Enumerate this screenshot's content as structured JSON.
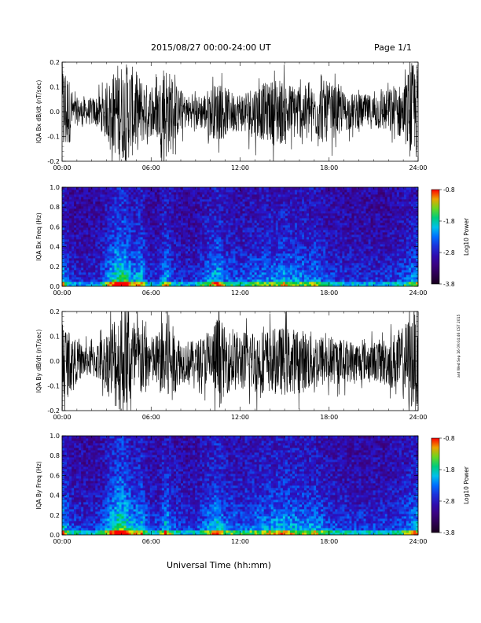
{
  "header": {
    "date_range": "2015/08/27  00:00-24:00 UT",
    "page": "Page 1/1"
  },
  "footer": {
    "xlabel": "Universal Time (hh:mm)"
  },
  "stamp": "ant Wed Sep 16 09:04:46 CST 2015",
  "chart_data": [
    {
      "type": "line",
      "ylabel": "IQA Bx dB/dt (nT/sec)",
      "xlim_hours": [
        0,
        24
      ],
      "ylim": [
        -0.2,
        0.2
      ],
      "xticks": [
        "00:00",
        "06:00",
        "12:00",
        "18:00",
        "24:00"
      ],
      "yticks": [
        "-0.2",
        "-0.1",
        "0.0",
        "0.1",
        "0.2"
      ],
      "ytick_values": [
        -0.2,
        -0.1,
        0.0,
        0.1,
        0.2
      ],
      "color": "#000000",
      "envelope": {
        "x_hours": [
          0,
          0.2,
          0.8,
          1.5,
          2.2,
          2.8,
          3.4,
          3.7,
          4.0,
          4.4,
          4.8,
          5.2,
          5.6,
          6.0,
          6.5,
          7.0,
          7.3,
          7.8,
          8.3,
          9.0,
          9.6,
          10.0,
          10.5,
          11.0,
          11.5,
          12.0,
          13.0,
          14.0,
          14.5,
          15.0,
          16.0,
          17.0,
          17.5,
          18.0,
          19.0,
          20.0,
          21.0,
          22.0,
          22.5,
          23.0,
          23.5,
          24.0
        ],
        "amplitude": [
          0.2,
          0.2,
          0.06,
          0.05,
          0.06,
          0.08,
          0.15,
          0.2,
          0.2,
          0.2,
          0.18,
          0.15,
          0.12,
          0.1,
          0.12,
          0.2,
          0.16,
          0.1,
          0.07,
          0.06,
          0.08,
          0.1,
          0.12,
          0.1,
          0.08,
          0.08,
          0.11,
          0.12,
          0.15,
          0.12,
          0.11,
          0.1,
          0.13,
          0.12,
          0.08,
          0.07,
          0.07,
          0.09,
          0.12,
          0.1,
          0.2,
          0.2
        ]
      }
    },
    {
      "type": "heatmap",
      "ylabel": "IQA Bx Freq (Hz)",
      "xlim_hours": [
        0,
        24
      ],
      "ylim": [
        0.0,
        1.0
      ],
      "xticks": [
        "00:00",
        "06:00",
        "12:00",
        "18:00",
        "24:00"
      ],
      "yticks": [
        "0.0",
        "0.2",
        "0.4",
        "0.6",
        "0.8",
        "1.0"
      ],
      "ytick_values": [
        0.0,
        0.2,
        0.4,
        0.6,
        0.8,
        1.0
      ],
      "colorbar": {
        "label": "Log10 Power",
        "range": [
          -3.8,
          -0.8
        ],
        "ticks": [
          "-0.8",
          "-1.8",
          "-2.8",
          "-3.8"
        ],
        "tick_values": [
          -0.8,
          -1.8,
          -2.8,
          -3.8
        ]
      },
      "activity": {
        "x_hours": [
          0,
          0.5,
          1.5,
          2.5,
          3.2,
          3.6,
          4.0,
          4.4,
          4.8,
          5.3,
          5.8,
          6.5,
          7.0,
          7.4,
          8.0,
          9.0,
          10.0,
          10.5,
          11.0,
          12.0,
          13.5,
          14.5,
          15.0,
          15.5,
          16.5,
          17.0,
          18.0,
          20.0,
          22.0,
          23.0,
          24.0
        ],
        "level": [
          0.7,
          0.3,
          0.25,
          0.3,
          0.6,
          0.8,
          0.9,
          0.75,
          0.55,
          0.7,
          0.35,
          0.3,
          0.65,
          0.4,
          0.3,
          0.3,
          0.55,
          0.7,
          0.45,
          0.4,
          0.5,
          0.55,
          0.6,
          0.55,
          0.5,
          0.55,
          0.35,
          0.3,
          0.3,
          0.4,
          0.6
        ]
      }
    },
    {
      "type": "line",
      "ylabel": "IQA By dB/dt (nT/sec)",
      "xlim_hours": [
        0,
        24
      ],
      "ylim": [
        -0.2,
        0.2
      ],
      "xticks": [
        "00:00",
        "06:00",
        "12:00",
        "18:00",
        "24:00"
      ],
      "yticks": [
        "-0.2",
        "-0.1",
        "0.0",
        "0.1",
        "0.2"
      ],
      "ytick_values": [
        -0.2,
        -0.1,
        0.0,
        0.1,
        0.2
      ],
      "color": "#000000",
      "envelope": {
        "x_hours": [
          0,
          0.4,
          1.0,
          1.8,
          2.4,
          3.0,
          3.5,
          4.0,
          4.5,
          5.0,
          5.5,
          6.0,
          6.5,
          7.0,
          7.4,
          8.0,
          9.0,
          10.0,
          10.5,
          11.0,
          12.0,
          13.0,
          14.0,
          15.0,
          16.0,
          17.0,
          18.0,
          19.0,
          20.0,
          21.0,
          22.0,
          22.5,
          23.0,
          23.5,
          24.0
        ],
        "amplitude": [
          0.2,
          0.13,
          0.08,
          0.06,
          0.08,
          0.12,
          0.2,
          0.2,
          0.2,
          0.17,
          0.15,
          0.1,
          0.12,
          0.2,
          0.15,
          0.09,
          0.08,
          0.12,
          0.2,
          0.13,
          0.12,
          0.13,
          0.13,
          0.14,
          0.13,
          0.12,
          0.1,
          0.09,
          0.08,
          0.08,
          0.1,
          0.12,
          0.14,
          0.2,
          0.2
        ]
      }
    },
    {
      "type": "heatmap",
      "ylabel": "IQA By Freq (Hz)",
      "xlim_hours": [
        0,
        24
      ],
      "ylim": [
        0.0,
        1.0
      ],
      "xticks": [
        "00:00",
        "06:00",
        "12:00",
        "18:00",
        "24:00"
      ],
      "yticks": [
        "0.0",
        "0.2",
        "0.4",
        "0.6",
        "0.8",
        "1.0"
      ],
      "ytick_values": [
        0.0,
        0.2,
        0.4,
        0.6,
        0.8,
        1.0
      ],
      "colorbar": {
        "label": "Log10 Power",
        "range": [
          -3.8,
          -0.8
        ],
        "ticks": [
          "-0.8",
          "-1.8",
          "-2.8",
          "-3.8"
        ],
        "tick_values": [
          -0.8,
          -1.8,
          -2.8,
          -3.8
        ]
      },
      "activity": {
        "x_hours": [
          0,
          0.5,
          1.5,
          2.5,
          3.2,
          3.6,
          4.0,
          4.4,
          4.8,
          5.3,
          5.8,
          6.5,
          7.0,
          7.4,
          8.0,
          9.0,
          10.0,
          10.5,
          11.0,
          12.0,
          13.5,
          14.5,
          15.0,
          15.5,
          16.5,
          17.0,
          18.0,
          20.0,
          22.0,
          23.0,
          24.0
        ],
        "level": [
          0.75,
          0.4,
          0.3,
          0.35,
          0.65,
          0.85,
          0.95,
          0.8,
          0.6,
          0.7,
          0.4,
          0.35,
          0.7,
          0.45,
          0.35,
          0.35,
          0.6,
          0.75,
          0.5,
          0.45,
          0.55,
          0.6,
          0.65,
          0.6,
          0.55,
          0.6,
          0.4,
          0.35,
          0.35,
          0.45,
          0.65
        ]
      }
    }
  ]
}
